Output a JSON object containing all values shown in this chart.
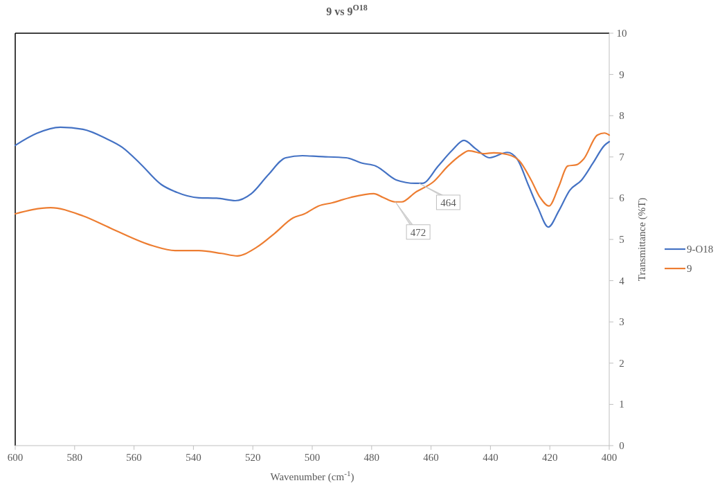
{
  "chart_data": {
    "type": "line",
    "title": "9 vs 9$^{O18}$",
    "xlabel": "Wavenumber (cm$^{-1}$)",
    "ylabel": "Transmittance (%T)",
    "xlim": [
      600,
      400
    ],
    "xticks": [
      600,
      580,
      560,
      540,
      520,
      500,
      480,
      460,
      440,
      420,
      400
    ],
    "ylim": [
      0,
      10
    ],
    "yticks": [
      0,
      1,
      2,
      3,
      4,
      5,
      6,
      7,
      8,
      9,
      10
    ],
    "grid": false,
    "legend": "right",
    "marker": "none",
    "line_style": "solid",
    "series": [
      {
        "name": "9-O18",
        "color": "#4472c4",
        "x": [
          600,
          592.8,
          584.8,
          577.2,
          569.5,
          563.9,
          557.8,
          550.8,
          546.2,
          538.2,
          532.2,
          525.9,
          520.5,
          514.9,
          508.9,
          503.3,
          497.9,
          488.6,
          483.2,
          478.6,
          471.6,
          465.3,
          462.9,
          457.6,
          452.9,
          448.9,
          445,
          440.3,
          434.3,
          431,
          427.3,
          424,
          420.5,
          417,
          413.3,
          409.3,
          405.4,
          401.6,
          400
        ],
        "values": [
          7.28,
          7.57,
          7.72,
          7.67,
          7.45,
          7.23,
          6.83,
          6.33,
          6.16,
          6.01,
          6.0,
          5.94,
          6.11,
          6.56,
          6.98,
          7.03,
          7.01,
          6.98,
          6.85,
          6.78,
          6.44,
          6.36,
          6.36,
          6.78,
          7.16,
          7.4,
          7.2,
          6.98,
          7.11,
          6.95,
          6.33,
          5.77,
          5.3,
          5.69,
          6.19,
          6.44,
          6.86,
          7.28,
          7.37
        ]
      },
      {
        "name": "9",
        "color": "#ed7d31",
        "x": [
          600,
          588.1,
          577.2,
          567.8,
          553.8,
          546.2,
          538.2,
          530.5,
          525.2,
          518.9,
          512.6,
          506.5,
          502.6,
          497.9,
          493.2,
          487,
          479.3,
          476.2,
          472.2,
          469.9,
          465.3,
          459,
          454.3,
          449.7,
          447.3,
          442,
          438.9,
          434.3,
          430.3,
          426.3,
          423.3,
          420.3,
          417,
          414,
          411,
          408.6,
          404,
          401.6,
          400
        ],
        "values": [
          5.62,
          5.77,
          5.57,
          5.27,
          4.85,
          4.73,
          4.73,
          4.66,
          4.6,
          4.8,
          5.15,
          5.52,
          5.62,
          5.81,
          5.89,
          6.02,
          6.11,
          6.02,
          5.91,
          5.91,
          6.14,
          6.41,
          6.78,
          7.06,
          7.15,
          7.08,
          7.1,
          7.06,
          6.91,
          6.44,
          6.02,
          5.81,
          6.28,
          6.78,
          6.81,
          6.95,
          7.53,
          7.58,
          7.53
        ]
      }
    ],
    "annotations": [
      {
        "text": "464",
        "x": 464,
        "y": 6.36
      },
      {
        "text": "472",
        "x": 472,
        "y": 5.91
      }
    ]
  }
}
